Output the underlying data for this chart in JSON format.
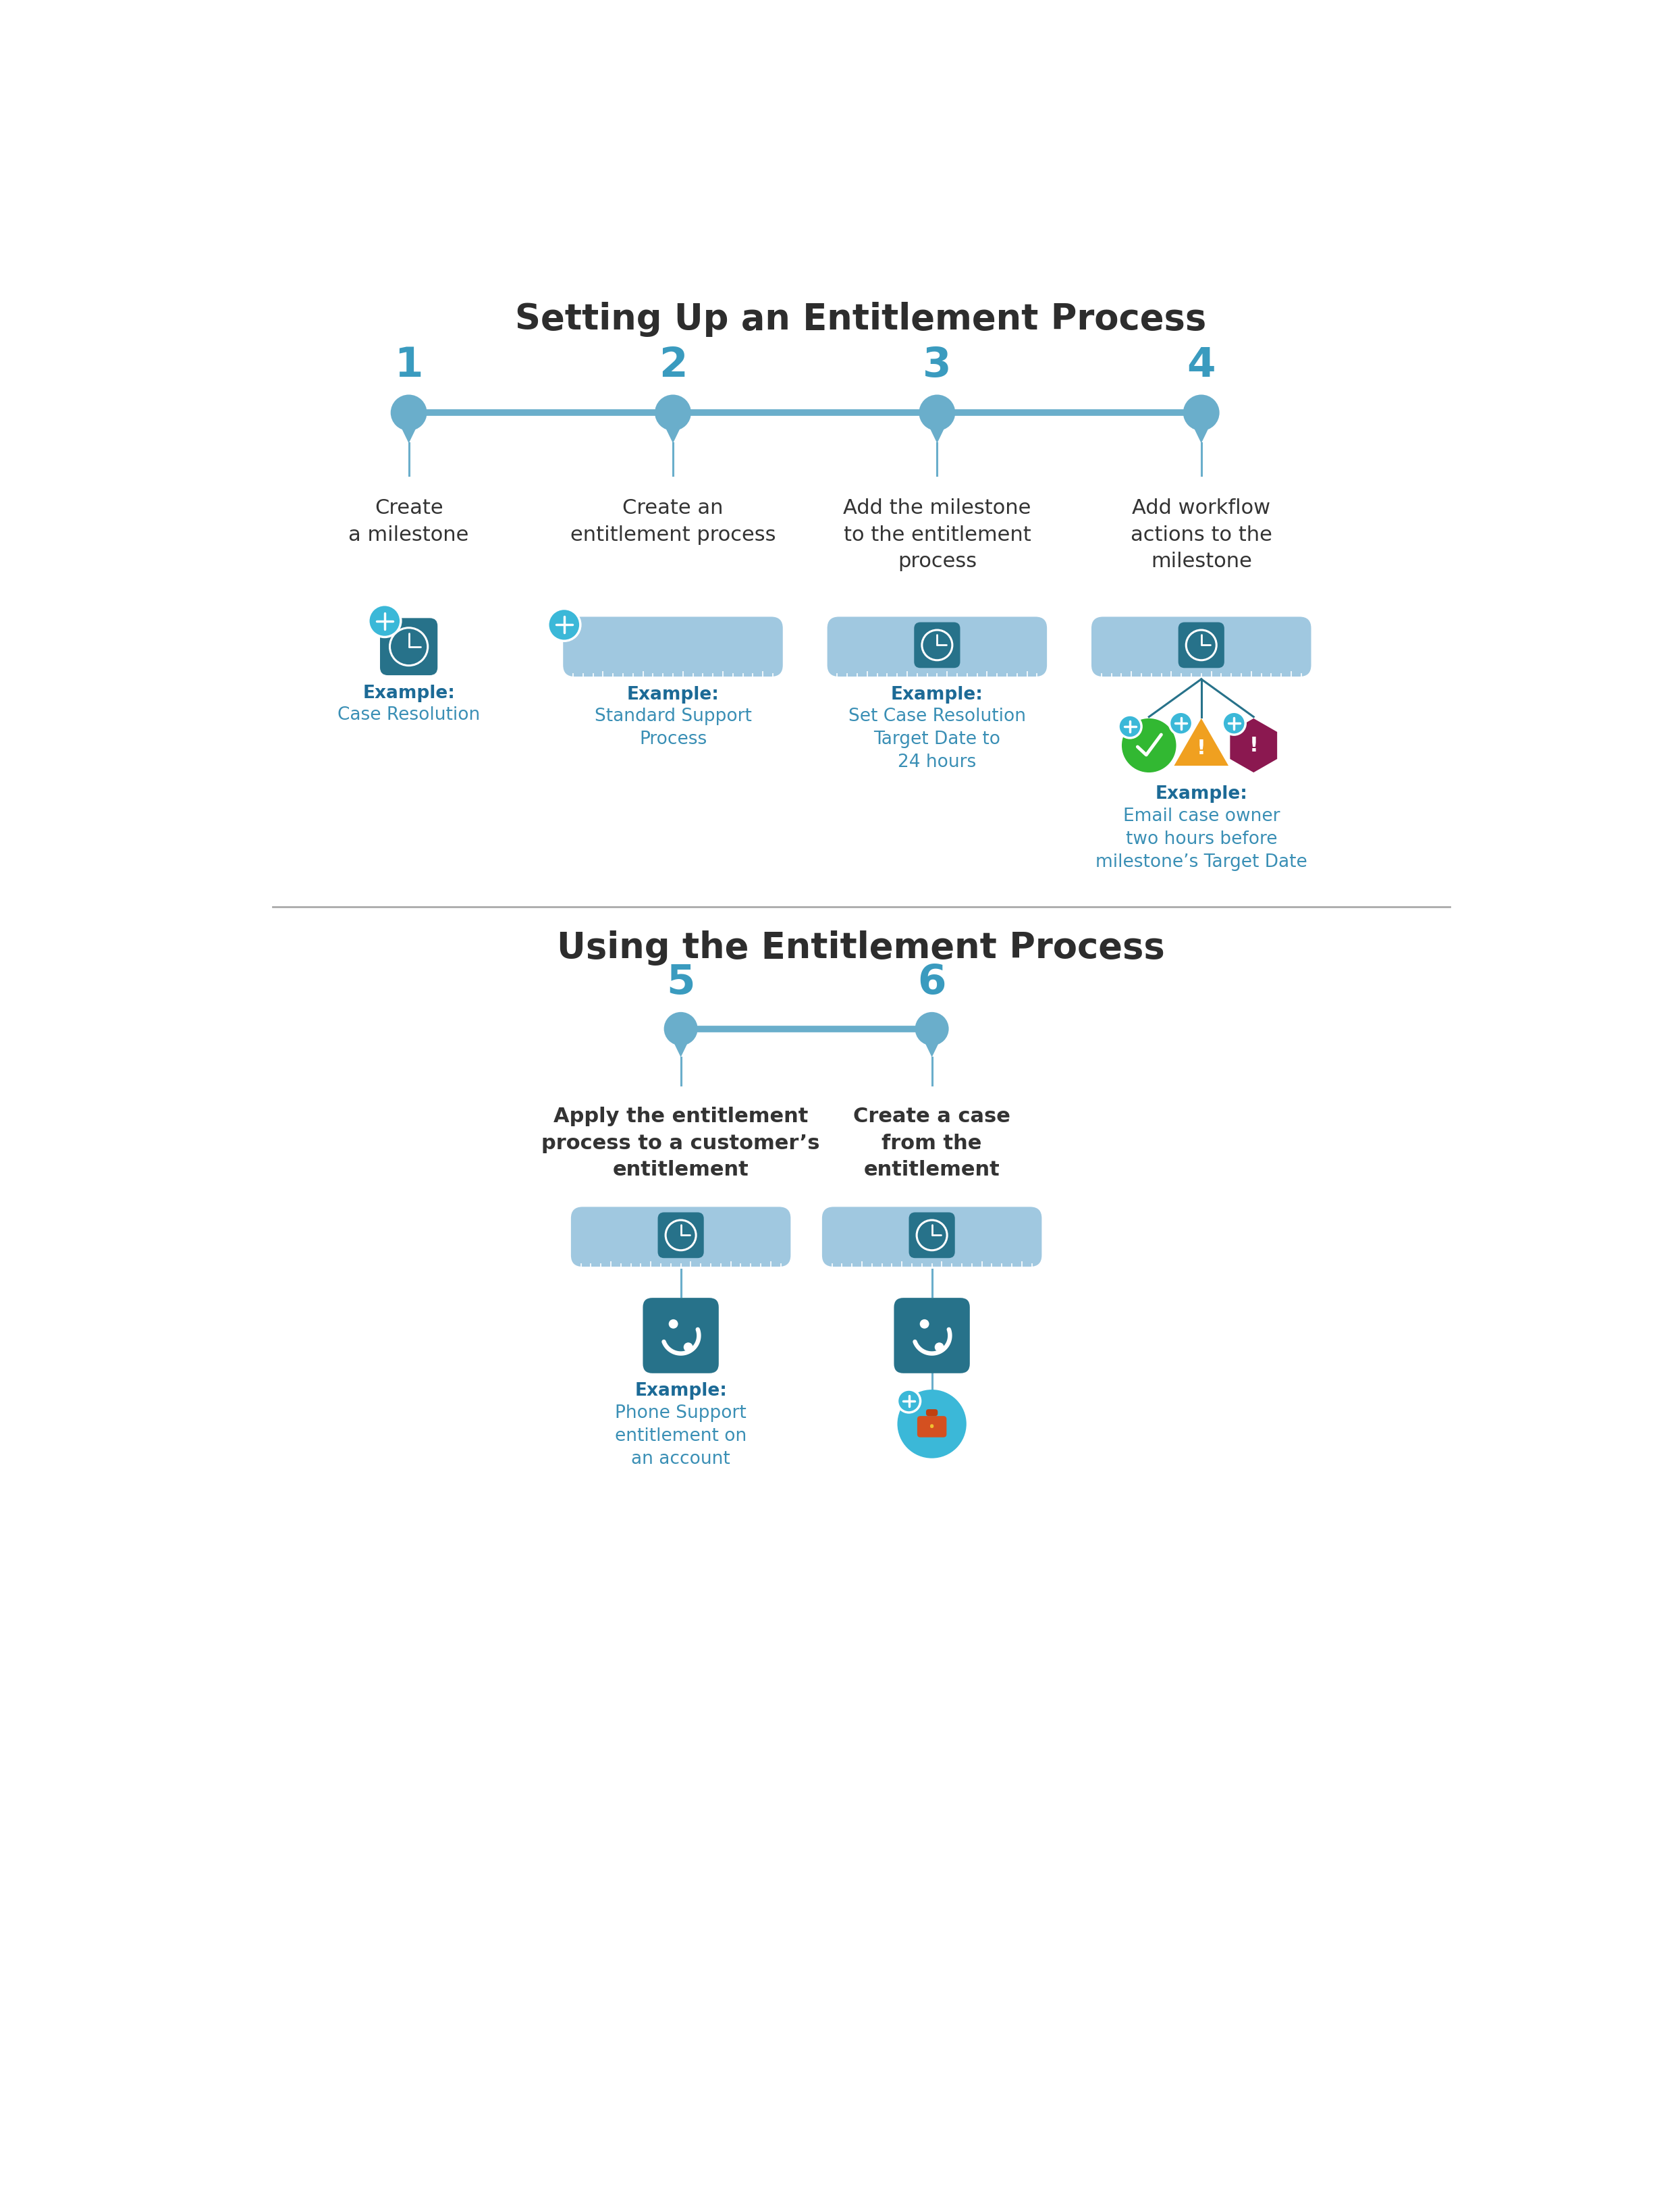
{
  "title1": "Setting Up an Entitlement Process",
  "title2": "Using the Entitlement Process",
  "bg_color": "#ffffff",
  "line_color": "#6aaecb",
  "step_numbers_top": [
    "1",
    "2",
    "3",
    "4"
  ],
  "step_numbers_bot": [
    "5",
    "6"
  ],
  "step_labels_top": [
    "Create\na milestone",
    "Create an\nentitlement process",
    "Add the milestone\nto the entitlement\nprocess",
    "Add workflow\nactions to the\nmilestone"
  ],
  "step_labels_bot": [
    "Apply the entitlement\nprocess to a customer’s\nentitlement",
    "Create a case\nfrom the\nentitlement"
  ],
  "example_texts_top": [
    "Case Resolution",
    "Standard Support\nProcess",
    "Set Case Resolution\nTarget Date to\n24 hours",
    "Email case owner\ntwo hours before\nmilestone’s Target Date"
  ],
  "example_text_bot5": "Phone Support\nentitlement on\nan account",
  "dark_teal": "#27728a",
  "mid_blue": "#4a9bbf",
  "light_blue": "#a0c8e0",
  "teal_blue": "#3a8fb5",
  "cyan_plus": "#3bb8d8",
  "green_check": "#32b832",
  "orange_warn": "#f0a020",
  "purple_err": "#8b1850",
  "example_bold_color": "#1c6a96",
  "example_text_color": "#3a8fb5",
  "separator_color": "#aaaaaa",
  "title_color": "#2d2d2d",
  "step_num_color": "#3a9bbf",
  "label_color": "#333333"
}
